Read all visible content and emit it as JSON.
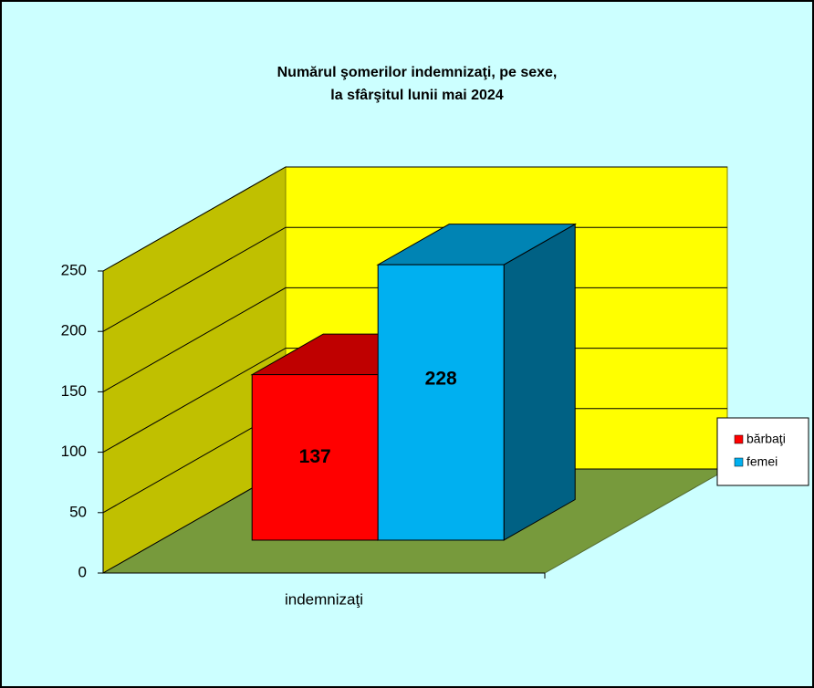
{
  "chart_data": {
    "type": "bar3d",
    "title": [
      "Numărul şomerilor indemnizaţi, pe sexe,",
      "la sfârşitul lunii mai 2024"
    ],
    "categories": [
      "indemnizaţi"
    ],
    "series": [
      {
        "name": "bărbaţi",
        "color": "#ff0000",
        "values": [
          137
        ]
      },
      {
        "name": "femei",
        "color": "#00b0f0",
        "values": [
          228
        ]
      }
    ],
    "ylim": [
      0,
      250
    ],
    "yticks": [
      0,
      50,
      100,
      150,
      200,
      250
    ],
    "grid": true,
    "legend": "right"
  }
}
